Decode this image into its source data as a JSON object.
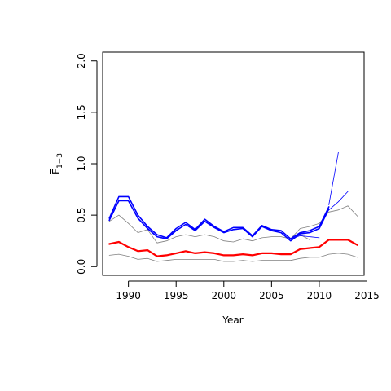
{
  "chart_data": {
    "type": "line",
    "xlabel": "Year",
    "ylabel": "F̄1−3",
    "ylabel_main": "F",
    "ylabel_sub": "1−3",
    "xlim": [
      1987.3,
      2014.7
    ],
    "ylim": [
      -0.085,
      2.085
    ],
    "x_ticks": [
      1990,
      1995,
      2000,
      2005,
      2010,
      2015
    ],
    "y_ticks": [
      0.0,
      0.5,
      1.0,
      1.5,
      2.0
    ],
    "x_tick_labels": [
      "1990",
      "1995",
      "2000",
      "2005",
      "2010",
      "2015"
    ],
    "y_tick_labels": [
      "0.0",
      "0.5",
      "1.0",
      "1.5",
      "2.0"
    ],
    "grid": false,
    "legend": "none",
    "series": [
      {
        "color": "#808080",
        "width": 0.8,
        "points": [
          [
            1988,
            0.11
          ],
          [
            1989,
            0.12
          ],
          [
            1990,
            0.1
          ],
          [
            1991,
            0.07
          ],
          [
            1992,
            0.08
          ],
          [
            1993,
            0.05
          ],
          [
            1994,
            0.06
          ],
          [
            1995,
            0.07
          ],
          [
            1996,
            0.07
          ],
          [
            1997,
            0.07
          ],
          [
            1998,
            0.07
          ],
          [
            1999,
            0.07
          ],
          [
            2000,
            0.05
          ],
          [
            2001,
            0.05
          ],
          [
            2002,
            0.06
          ],
          [
            2003,
            0.05
          ],
          [
            2004,
            0.06
          ],
          [
            2005,
            0.06
          ],
          [
            2006,
            0.06
          ],
          [
            2007,
            0.06
          ],
          [
            2008,
            0.08
          ],
          [
            2009,
            0.09
          ],
          [
            2010,
            0.09
          ],
          [
            2011,
            0.12
          ],
          [
            2012,
            0.13
          ],
          [
            2013,
            0.12
          ],
          [
            2014,
            0.09
          ]
        ]
      },
      {
        "color": "#808080",
        "width": 0.8,
        "points": [
          [
            1988,
            0.44
          ],
          [
            1989,
            0.5
          ],
          [
            1990,
            0.42
          ],
          [
            1991,
            0.33
          ],
          [
            1992,
            0.36
          ],
          [
            1993,
            0.23
          ],
          [
            1994,
            0.25
          ],
          [
            1995,
            0.29
          ],
          [
            1996,
            0.31
          ],
          [
            1997,
            0.29
          ],
          [
            1998,
            0.31
          ],
          [
            1999,
            0.29
          ],
          [
            2000,
            0.25
          ],
          [
            2001,
            0.24
          ],
          [
            2002,
            0.27
          ],
          [
            2003,
            0.25
          ],
          [
            2004,
            0.28
          ],
          [
            2005,
            0.29
          ],
          [
            2006,
            0.29
          ],
          [
            2007,
            0.27
          ],
          [
            2008,
            0.37
          ],
          [
            2009,
            0.39
          ],
          [
            2010,
            0.42
          ],
          [
            2011,
            0.53
          ],
          [
            2012,
            0.55
          ],
          [
            2013,
            0.59
          ],
          [
            2014,
            0.49
          ]
        ]
      },
      {
        "color": "#808080",
        "width": 0.8,
        "points": [
          [
            2007,
            0.25
          ],
          [
            2008,
            0.31
          ],
          [
            2009,
            0.26
          ]
        ]
      },
      {
        "color": "#ff0000",
        "width": 2.2,
        "points": [
          [
            1988,
            0.22
          ],
          [
            1989,
            0.24
          ],
          [
            1990,
            0.19
          ],
          [
            1991,
            0.15
          ],
          [
            1992,
            0.16
          ],
          [
            1993,
            0.1
          ],
          [
            1994,
            0.11
          ],
          [
            1995,
            0.13
          ],
          [
            1996,
            0.15
          ],
          [
            1997,
            0.13
          ],
          [
            1998,
            0.14
          ],
          [
            1999,
            0.13
          ],
          [
            2000,
            0.11
          ],
          [
            2001,
            0.11
          ],
          [
            2002,
            0.12
          ],
          [
            2003,
            0.11
          ],
          [
            2004,
            0.13
          ],
          [
            2005,
            0.13
          ],
          [
            2006,
            0.12
          ],
          [
            2007,
            0.12
          ],
          [
            2008,
            0.17
          ],
          [
            2009,
            0.18
          ],
          [
            2010,
            0.19
          ],
          [
            2011,
            0.26
          ],
          [
            2012,
            0.26
          ],
          [
            2013,
            0.26
          ],
          [
            2014,
            0.21
          ]
        ]
      },
      {
        "color": "#0000ff",
        "width": 1.6,
        "points": [
          [
            1988,
            0.45
          ],
          [
            1989,
            0.64
          ],
          [
            1990,
            0.64
          ],
          [
            1991,
            0.47
          ],
          [
            1992,
            0.37
          ],
          [
            1993,
            0.29
          ],
          [
            1994,
            0.27
          ],
          [
            1995,
            0.35
          ],
          [
            1996,
            0.41
          ],
          [
            1997,
            0.35
          ],
          [
            1998,
            0.44
          ],
          [
            1999,
            0.38
          ],
          [
            2000,
            0.33
          ],
          [
            2001,
            0.36
          ],
          [
            2002,
            0.37
          ],
          [
            2003,
            0.29
          ],
          [
            2004,
            0.39
          ],
          [
            2005,
            0.35
          ],
          [
            2006,
            0.33
          ],
          [
            2007,
            0.25
          ],
          [
            2008,
            0.32
          ],
          [
            2009,
            0.33
          ],
          [
            2010,
            0.37
          ],
          [
            2011,
            0.56
          ]
        ]
      },
      {
        "color": "#0000ff",
        "width": 1.6,
        "points": [
          [
            1988,
            0.47
          ],
          [
            1989,
            0.68
          ],
          [
            1990,
            0.68
          ],
          [
            1991,
            0.5
          ],
          [
            1992,
            0.39
          ],
          [
            1993,
            0.31
          ],
          [
            1994,
            0.28
          ],
          [
            1995,
            0.37
          ],
          [
            1996,
            0.43
          ],
          [
            1997,
            0.36
          ],
          [
            1998,
            0.46
          ],
          [
            1999,
            0.39
          ],
          [
            2000,
            0.34
          ],
          [
            2001,
            0.38
          ],
          [
            2002,
            0.38
          ],
          [
            2003,
            0.3
          ],
          [
            2004,
            0.4
          ],
          [
            2005,
            0.36
          ],
          [
            2006,
            0.35
          ],
          [
            2007,
            0.27
          ],
          [
            2008,
            0.33
          ],
          [
            2009,
            0.35
          ],
          [
            2010,
            0.39
          ],
          [
            2011,
            0.58
          ]
        ]
      },
      {
        "color": "#0000ff",
        "width": 0.8,
        "points": [
          [
            2011,
            0.6
          ],
          [
            2012,
            1.11
          ]
        ]
      },
      {
        "color": "#0000ff",
        "width": 0.8,
        "points": [
          [
            2011,
            0.55
          ],
          [
            2012,
            0.63
          ],
          [
            2013,
            0.73
          ]
        ]
      },
      {
        "color": "#0000ff",
        "width": 0.8,
        "points": [
          [
            2007,
            0.27
          ],
          [
            2008,
            0.3
          ],
          [
            2009,
            0.29
          ],
          [
            2010,
            0.28
          ]
        ]
      }
    ]
  }
}
